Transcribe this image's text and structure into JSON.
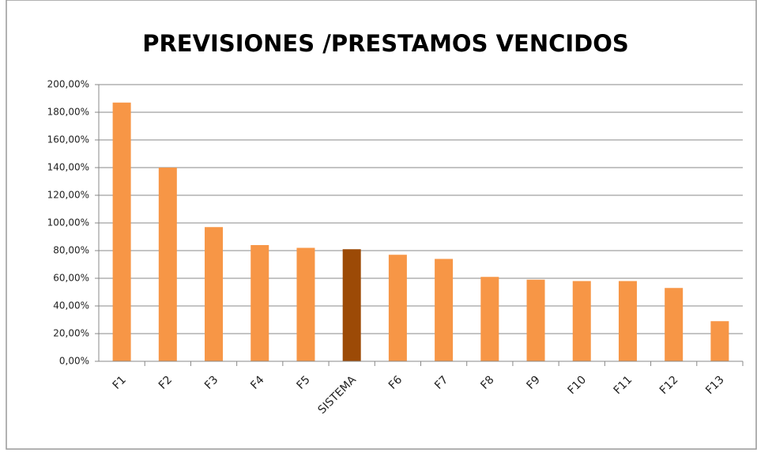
{
  "chart_data": {
    "type": "bar",
    "title": "PREVISIONES /PRESTAMOS VENCIDOS",
    "categories": [
      "F1",
      "F2",
      "F3",
      "F4",
      "F5",
      "SISTEMA",
      "F6",
      "F7",
      "F8",
      "F9",
      "F10",
      "F11",
      "F12",
      "F13"
    ],
    "values": [
      187,
      140,
      97,
      84,
      82,
      81,
      77,
      74,
      61,
      59,
      58,
      58,
      53,
      29
    ],
    "colors": [
      "#f79646",
      "#f79646",
      "#f79646",
      "#f79646",
      "#f79646",
      "#9c4a06",
      "#f79646",
      "#f79646",
      "#f79646",
      "#f79646",
      "#f79646",
      "#f79646",
      "#f79646",
      "#f79646"
    ],
    "ylim": [
      0,
      200
    ],
    "yticks": [
      {
        "value": 0,
        "label": "0,00%"
      },
      {
        "value": 20,
        "label": "20,00%"
      },
      {
        "value": 40,
        "label": "40,00%"
      },
      {
        "value": 60,
        "label": "60,00%"
      },
      {
        "value": 80,
        "label": "80,00%"
      },
      {
        "value": 100,
        "label": "100,00%"
      },
      {
        "value": 120,
        "label": "120,00%"
      },
      {
        "value": 140,
        "label": "140,00%"
      },
      {
        "value": 160,
        "label": "160,00%"
      },
      {
        "value": 180,
        "label": "180,00%"
      },
      {
        "value": 200,
        "label": "200,00%"
      }
    ],
    "grid": true
  }
}
